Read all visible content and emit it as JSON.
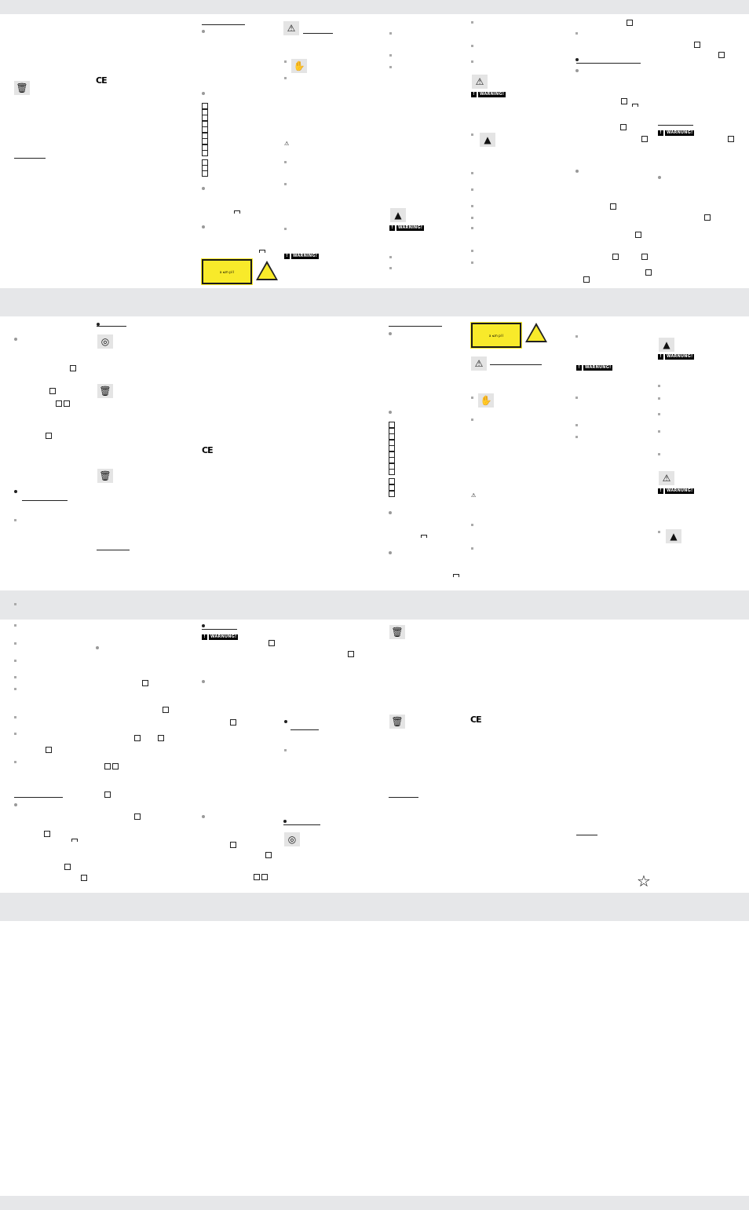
{
  "badges": {
    "warning_en": "WARNING!",
    "warning_de": "WARNUNG!"
  },
  "symbols": {
    "ce": "CE",
    "laser_label": "a          ≤m pl I",
    "warning": "⚠",
    "weee": "weee-bin-icon",
    "recycle": "green-dot-icon",
    "laser": "laser-warning-icon",
    "hand": "hand-icon",
    "star": "☆"
  },
  "colors": {
    "band": "#e6e7e9",
    "laser_label": "#f8ea2a"
  }
}
